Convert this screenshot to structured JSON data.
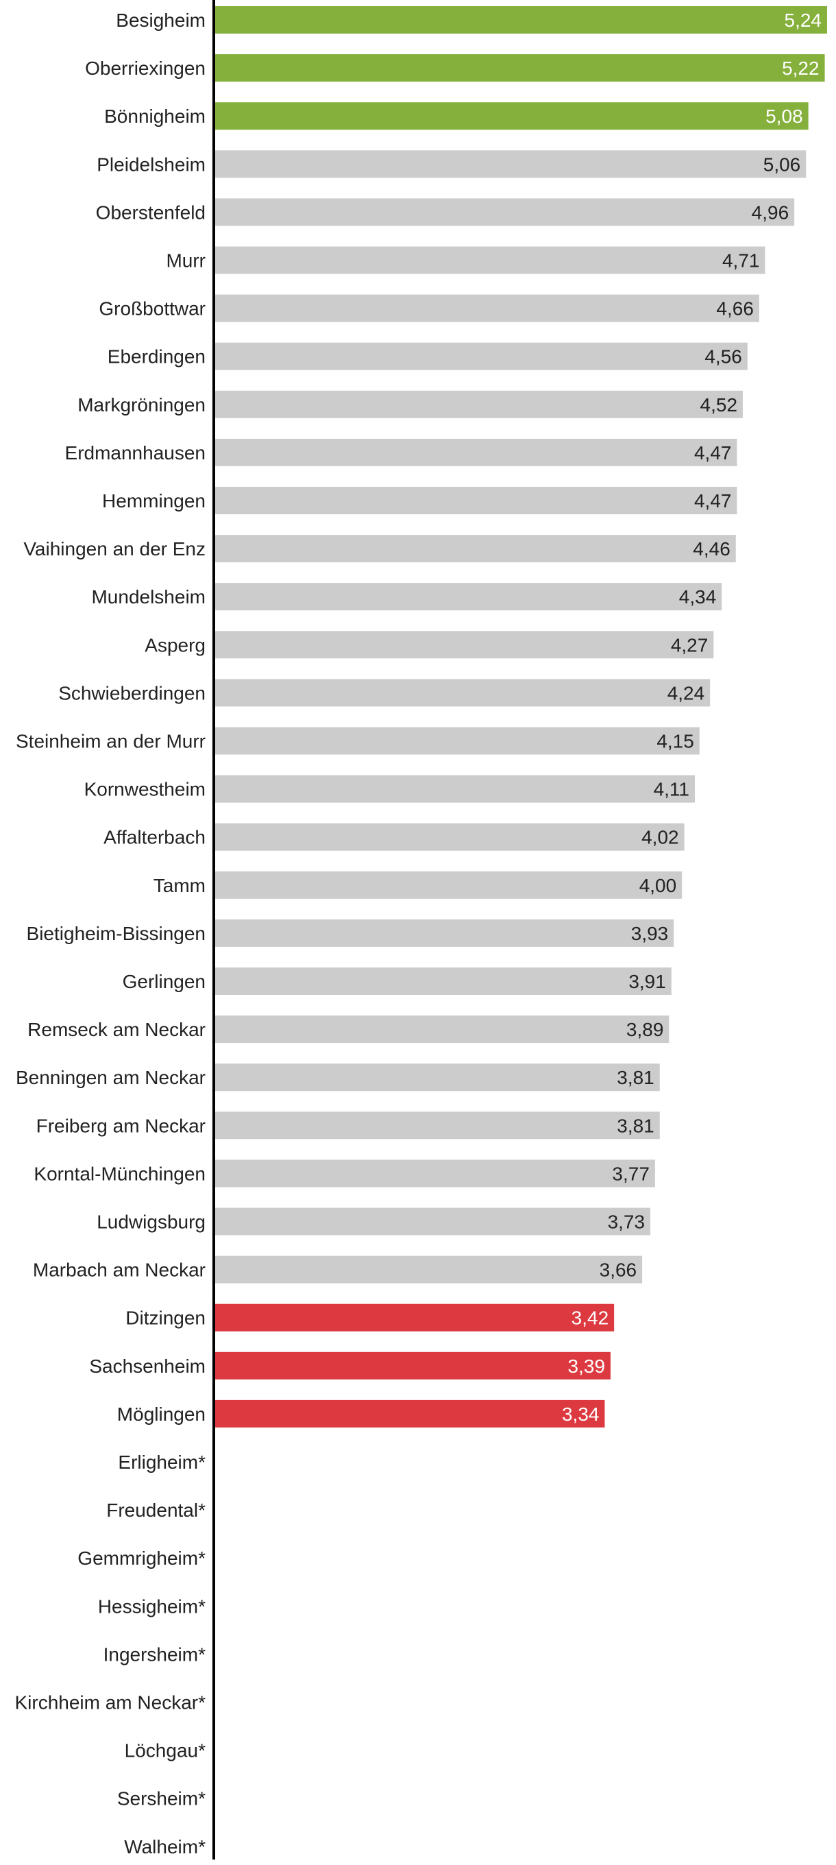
{
  "chart_data": {
    "type": "bar",
    "orientation": "horizontal",
    "title": "",
    "xlabel": "",
    "ylabel": "",
    "grid": false,
    "xlim": [
      0,
      5.24
    ],
    "colors": {
      "top": "#86b03c",
      "middle": "#cccccc",
      "bottom": "#dc3a40",
      "axis": "#000000"
    },
    "bars": [
      {
        "category": "Besigheim",
        "value": 5.24,
        "label": "5,24",
        "group": "top"
      },
      {
        "category": "Oberriexingen",
        "value": 5.22,
        "label": "5,22",
        "group": "top"
      },
      {
        "category": "Bönnigheim",
        "value": 5.08,
        "label": "5,08",
        "group": "top"
      },
      {
        "category": "Pleidelsheim",
        "value": 5.06,
        "label": "5,06",
        "group": "middle"
      },
      {
        "category": "Oberstenfeld",
        "value": 4.96,
        "label": "4,96",
        "group": "middle"
      },
      {
        "category": "Murr",
        "value": 4.71,
        "label": "4,71",
        "group": "middle"
      },
      {
        "category": "Großbottwar",
        "value": 4.66,
        "label": "4,66",
        "group": "middle"
      },
      {
        "category": "Eberdingen",
        "value": 4.56,
        "label": "4,56",
        "group": "middle"
      },
      {
        "category": "Markgröningen",
        "value": 4.52,
        "label": "4,52",
        "group": "middle"
      },
      {
        "category": "Erdmannhausen",
        "value": 4.47,
        "label": "4,47",
        "group": "middle"
      },
      {
        "category": "Hemmingen",
        "value": 4.47,
        "label": "4,47",
        "group": "middle"
      },
      {
        "category": "Vaihingen an der Enz",
        "value": 4.46,
        "label": "4,46",
        "group": "middle"
      },
      {
        "category": "Mundelsheim",
        "value": 4.34,
        "label": "4,34",
        "group": "middle"
      },
      {
        "category": "Asperg",
        "value": 4.27,
        "label": "4,27",
        "group": "middle"
      },
      {
        "category": "Schwieberdingen",
        "value": 4.24,
        "label": "4,24",
        "group": "middle"
      },
      {
        "category": "Steinheim an der Murr",
        "value": 4.15,
        "label": "4,15",
        "group": "middle"
      },
      {
        "category": "Kornwestheim",
        "value": 4.11,
        "label": "4,11",
        "group": "middle"
      },
      {
        "category": "Affalterbach",
        "value": 4.02,
        "label": "4,02",
        "group": "middle"
      },
      {
        "category": "Tamm",
        "value": 4.0,
        "label": "4,00",
        "group": "middle"
      },
      {
        "category": "Bietigheim-Bissingen",
        "value": 3.93,
        "label": "3,93",
        "group": "middle"
      },
      {
        "category": "Gerlingen",
        "value": 3.91,
        "label": "3,91",
        "group": "middle"
      },
      {
        "category": "Remseck am Neckar",
        "value": 3.89,
        "label": "3,89",
        "group": "middle"
      },
      {
        "category": "Benningen am Neckar",
        "value": 3.81,
        "label": "3,81",
        "group": "middle"
      },
      {
        "category": "Freiberg am Neckar",
        "value": 3.81,
        "label": "3,81",
        "group": "middle"
      },
      {
        "category": "Korntal-Münchingen",
        "value": 3.77,
        "label": "3,77",
        "group": "middle"
      },
      {
        "category": "Ludwigsburg",
        "value": 3.73,
        "label": "3,73",
        "group": "middle"
      },
      {
        "category": "Marbach am Neckar",
        "value": 3.66,
        "label": "3,66",
        "group": "middle"
      },
      {
        "category": "Ditzingen",
        "value": 3.42,
        "label": "3,42",
        "group": "bottom"
      },
      {
        "category": "Sachsenheim",
        "value": 3.39,
        "label": "3,39",
        "group": "bottom"
      },
      {
        "category": "Möglingen",
        "value": 3.34,
        "label": "3,34",
        "group": "bottom"
      },
      {
        "category": "Erligheim*",
        "value": null,
        "label": "",
        "group": "none"
      },
      {
        "category": "Freudental*",
        "value": null,
        "label": "",
        "group": "none"
      },
      {
        "category": "Gemmrigheim*",
        "value": null,
        "label": "",
        "group": "none"
      },
      {
        "category": "Hessigheim*",
        "value": null,
        "label": "",
        "group": "none"
      },
      {
        "category": "Ingersheim*",
        "value": null,
        "label": "",
        "group": "none"
      },
      {
        "category": "Kirchheim am Neckar*",
        "value": null,
        "label": "",
        "group": "none"
      },
      {
        "category": "Löchgau*",
        "value": null,
        "label": "",
        "group": "none"
      },
      {
        "category": "Sersheim*",
        "value": null,
        "label": "",
        "group": "none"
      },
      {
        "category": "Walheim*",
        "value": null,
        "label": "",
        "group": "none"
      }
    ]
  }
}
